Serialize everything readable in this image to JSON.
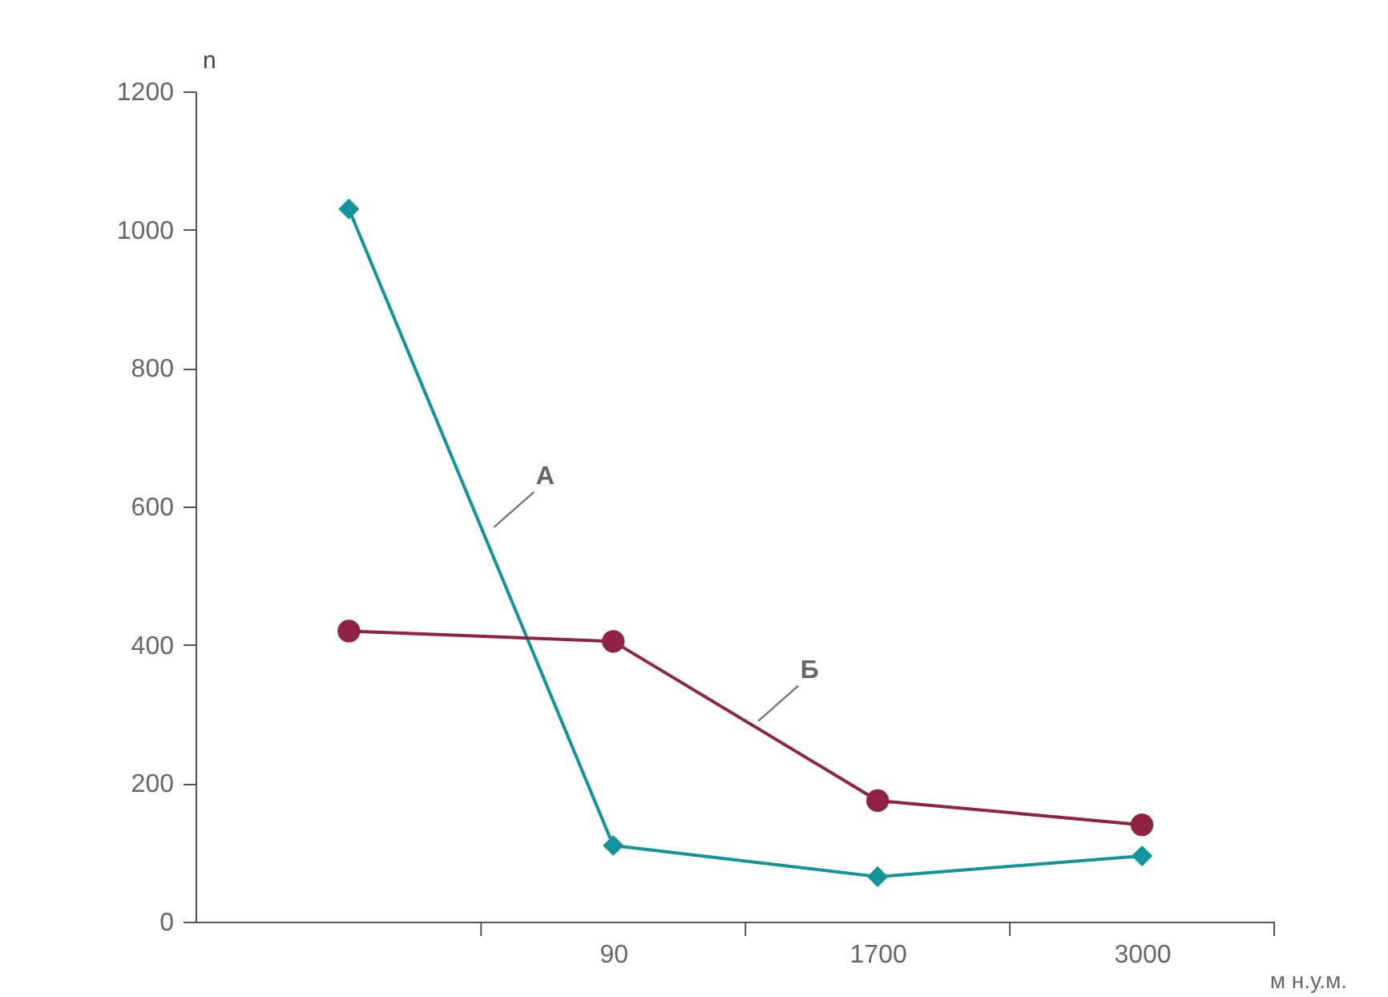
{
  "chart_data": {
    "type": "line",
    "xlabel": "м н.у.м.",
    "ylabel": "n",
    "categories": [
      null,
      "90",
      "1700",
      "3000"
    ],
    "series": [
      {
        "name": "А",
        "color": "#13939b",
        "marker": "diamond",
        "values": [
          1030,
          110,
          65,
          95
        ]
      },
      {
        "name": "Б",
        "color": "#8e2240",
        "marker": "circle",
        "values": [
          420,
          405,
          175,
          140
        ]
      }
    ],
    "ylim": [
      0,
      1200
    ],
    "yticks": [
      0,
      200,
      400,
      600,
      800,
      1000,
      1200
    ],
    "grid": false
  }
}
